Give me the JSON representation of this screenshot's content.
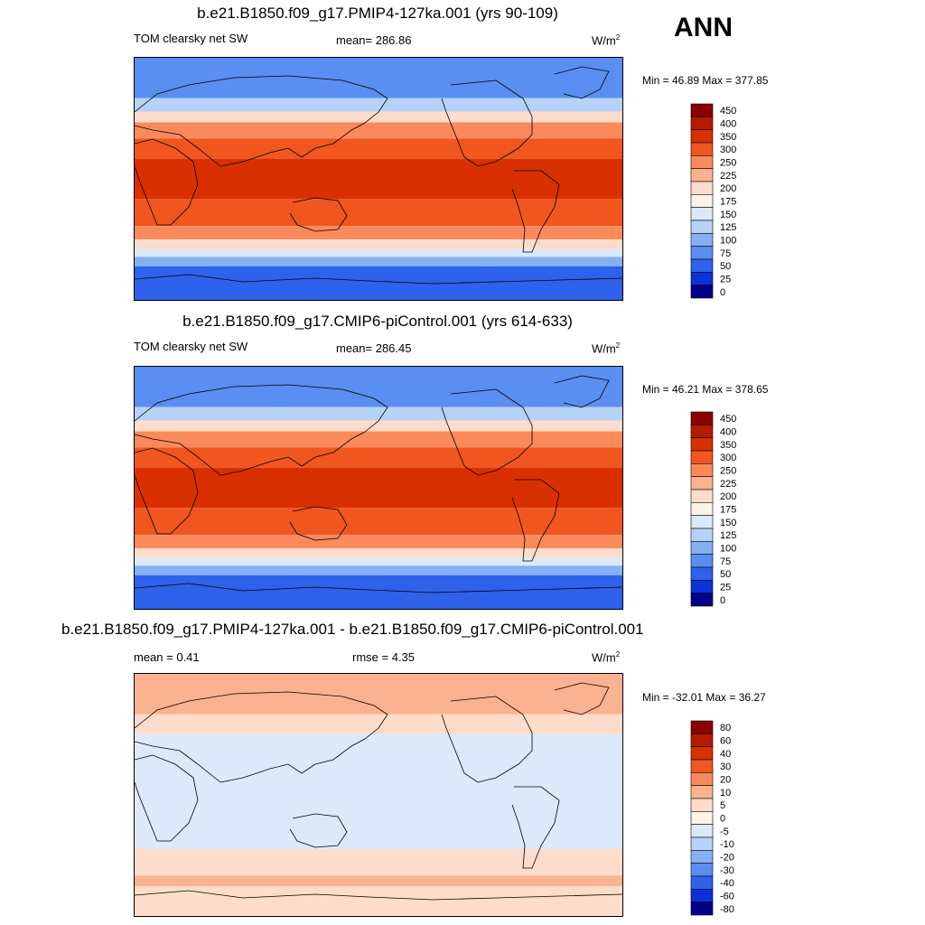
{
  "season": "ANN",
  "panels": [
    {
      "title": "b.e21.B1850.f09_g17.PMIP4-127ka.001 (yrs 90-109)",
      "left_label": "TOM clearsky net SW",
      "center_label": "mean= 286.86",
      "units_text": "W/m",
      "units_sup": "2",
      "minmax": "Min =  46.89 Max = 377.85",
      "levels": [
        "450",
        "400",
        "350",
        "300",
        "250",
        "225",
        "200",
        "175",
        "150",
        "125",
        "100",
        "75",
        "50",
        "25",
        "0"
      ],
      "colors": [
        "#8b0000",
        "#b51a00",
        "#d93000",
        "#f0561e",
        "#fa8a5c",
        "#fbb290",
        "#fddccb",
        "#fff2e6",
        "#dbe9fb",
        "#b7d2f8",
        "#86b0f4",
        "#5a8ef0",
        "#2e62ea",
        "#0b32d8",
        "#00008b"
      ],
      "bands": [
        {
          "lat": [
            60,
            90
          ],
          "color": "#5a8ef0"
        },
        {
          "lat": [
            50,
            60
          ],
          "color": "#b7d2f8"
        },
        {
          "lat": [
            42,
            50
          ],
          "color": "#fddccb"
        },
        {
          "lat": [
            30,
            42
          ],
          "color": "#fa8a5c"
        },
        {
          "lat": [
            15,
            30
          ],
          "color": "#f0561e"
        },
        {
          "lat": [
            -15,
            15
          ],
          "color": "#d93000"
        },
        {
          "lat": [
            -35,
            -15
          ],
          "color": "#f0561e"
        },
        {
          "lat": [
            -45,
            -35
          ],
          "color": "#fa8a5c"
        },
        {
          "lat": [
            -52,
            -45
          ],
          "color": "#fddccb"
        },
        {
          "lat": [
            -58,
            -52
          ],
          "color": "#dbe9fb"
        },
        {
          "lat": [
            -65,
            -58
          ],
          "color": "#86b0f4"
        },
        {
          "lat": [
            -90,
            -65
          ],
          "color": "#2e62ea"
        }
      ]
    },
    {
      "title": "b.e21.B1850.f09_g17.CMIP6-piControl.001 (yrs 614-633)",
      "left_label": "TOM clearsky net SW",
      "center_label": "mean= 286.45",
      "units_text": "W/m",
      "units_sup": "2",
      "minmax": "Min =  46.21 Max = 378.65",
      "levels": [
        "450",
        "400",
        "350",
        "300",
        "250",
        "225",
        "200",
        "175",
        "150",
        "125",
        "100",
        "75",
        "50",
        "25",
        "0"
      ],
      "colors": [
        "#8b0000",
        "#b51a00",
        "#d93000",
        "#f0561e",
        "#fa8a5c",
        "#fbb290",
        "#fddccb",
        "#fff2e6",
        "#dbe9fb",
        "#b7d2f8",
        "#86b0f4",
        "#5a8ef0",
        "#2e62ea",
        "#0b32d8",
        "#00008b"
      ],
      "bands": [
        {
          "lat": [
            60,
            90
          ],
          "color": "#5a8ef0"
        },
        {
          "lat": [
            50,
            60
          ],
          "color": "#b7d2f8"
        },
        {
          "lat": [
            42,
            50
          ],
          "color": "#fddccb"
        },
        {
          "lat": [
            30,
            42
          ],
          "color": "#fa8a5c"
        },
        {
          "lat": [
            15,
            30
          ],
          "color": "#f0561e"
        },
        {
          "lat": [
            -15,
            15
          ],
          "color": "#d93000"
        },
        {
          "lat": [
            -35,
            -15
          ],
          "color": "#f0561e"
        },
        {
          "lat": [
            -45,
            -35
          ],
          "color": "#fa8a5c"
        },
        {
          "lat": [
            -52,
            -45
          ],
          "color": "#fddccb"
        },
        {
          "lat": [
            -58,
            -52
          ],
          "color": "#dbe9fb"
        },
        {
          "lat": [
            -65,
            -58
          ],
          "color": "#86b0f4"
        },
        {
          "lat": [
            -90,
            -65
          ],
          "color": "#2e62ea"
        }
      ]
    },
    {
      "title": "b.e21.B1850.f09_g17.PMIP4-127ka.001 - b.e21.B1850.f09_g17.CMIP6-piControl.001",
      "left_label": "mean =   0.41",
      "center_label": "rmse =   4.35",
      "units_text": "W/m",
      "units_sup": "2",
      "minmax": "Min = -32.01 Max =  36.27",
      "levels": [
        "80",
        "60",
        "40",
        "30",
        "20",
        "10",
        "5",
        "0",
        "-5",
        "-10",
        "-20",
        "-30",
        "-40",
        "-60",
        "-80"
      ],
      "colors": [
        "#8b0000",
        "#b51a00",
        "#d93000",
        "#f0561e",
        "#fa8a5c",
        "#fbb290",
        "#fddccb",
        "#fff2e6",
        "#dbe9fb",
        "#b7d2f8",
        "#86b0f4",
        "#5a8ef0",
        "#2e62ea",
        "#0b32d8",
        "#00008b"
      ],
      "bands": [
        {
          "lat": [
            60,
            90
          ],
          "color": "#fbb290"
        },
        {
          "lat": [
            45,
            60
          ],
          "color": "#fddccb"
        },
        {
          "lat": [
            35,
            45
          ],
          "color": "#dbe9fb"
        },
        {
          "lat": [
            -40,
            35
          ],
          "color": "#dbe9fb"
        },
        {
          "lat": [
            -60,
            -40
          ],
          "color": "#fddccb"
        },
        {
          "lat": [
            -68,
            -60
          ],
          "color": "#fbb290"
        },
        {
          "lat": [
            -90,
            -68
          ],
          "color": "#fddccb"
        }
      ]
    }
  ]
}
